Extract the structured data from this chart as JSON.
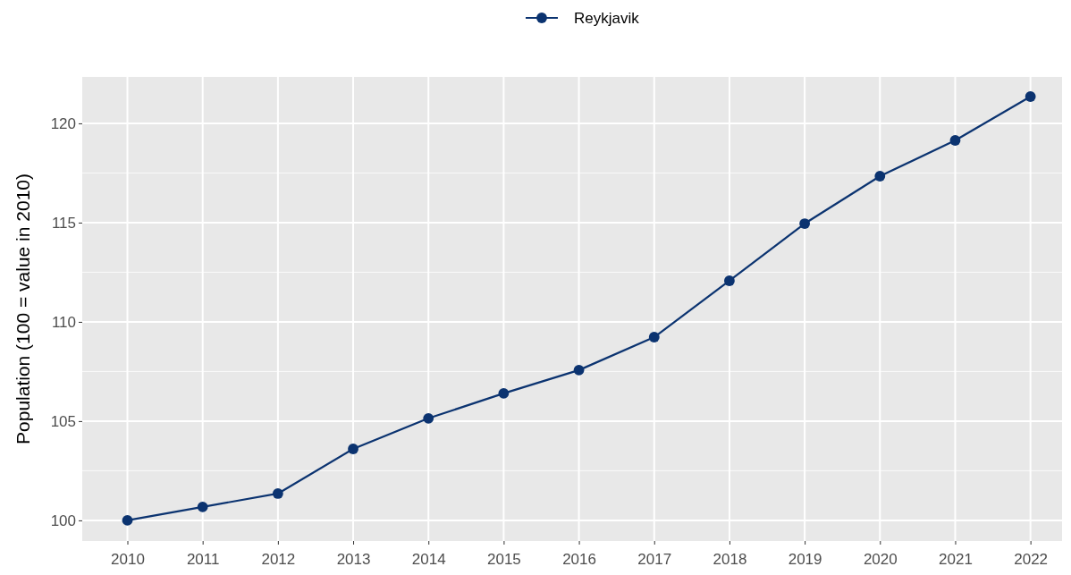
{
  "chart_data": {
    "type": "line",
    "ylabel": "Population (100 = value in 2010)",
    "x": [
      2010,
      2011,
      2012,
      2013,
      2014,
      2015,
      2016,
      2017,
      2018,
      2019,
      2020,
      2021,
      2022
    ],
    "series": [
      {
        "name": "Reykjavik",
        "color": "#0b3370",
        "values": [
          100,
          100.68,
          101.35,
          103.6,
          105.14,
          106.4,
          107.57,
          109.23,
          112.07,
          114.95,
          117.34,
          119.14,
          121.35
        ]
      }
    ],
    "xlim": [
      2009.4,
      2022.42
    ],
    "xticks": [
      2010,
      2011,
      2012,
      2013,
      2014,
      2015,
      2016,
      2017,
      2018,
      2019,
      2020,
      2021,
      2022
    ],
    "ylim": [
      98.96,
      122.34
    ],
    "yticks": [
      100,
      105,
      110,
      115,
      120
    ],
    "grid": true,
    "legend": "top",
    "marker": "circle",
    "line_style": "solid"
  }
}
